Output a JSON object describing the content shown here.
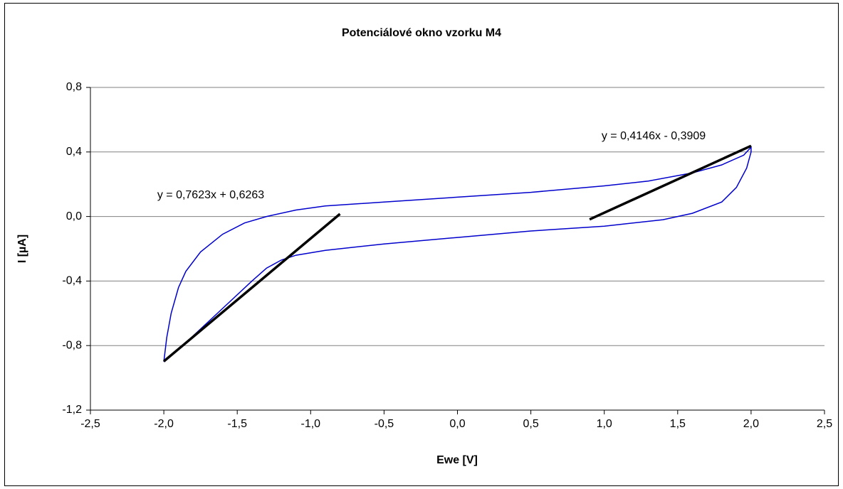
{
  "chart_data": {
    "type": "line",
    "title": "Potenciálové okno vzorku M4",
    "xlabel": "Ewe [V]",
    "ylabel": "I [µA]",
    "xlim": [
      -2.5,
      2.5
    ],
    "ylim": [
      -1.2,
      0.8
    ],
    "xticks": [
      {
        "value": -2.5,
        "label": "-2,5"
      },
      {
        "value": -2.0,
        "label": "-2,0"
      },
      {
        "value": -1.5,
        "label": "-1,5"
      },
      {
        "value": -1.0,
        "label": "-1,0"
      },
      {
        "value": -0.5,
        "label": "-0,5"
      },
      {
        "value": 0,
        "label": "0,0"
      },
      {
        "value": 0.5,
        "label": "0,5"
      },
      {
        "value": 1.0,
        "label": "1,0"
      },
      {
        "value": 1.5,
        "label": "1,5"
      },
      {
        "value": 2.0,
        "label": "2,0"
      },
      {
        "value": 2.5,
        "label": "2,5"
      }
    ],
    "yticks": [
      {
        "value": -1.2,
        "label": "-1,2"
      },
      {
        "value": -0.8,
        "label": "-0,8"
      },
      {
        "value": -0.4,
        "label": "-0,4"
      },
      {
        "value": 0,
        "label": "0,0"
      },
      {
        "value": 0.4,
        "label": "0,4"
      },
      {
        "value": 0.8,
        "label": "0,8"
      }
    ],
    "grid": true,
    "series": [
      {
        "color": "#0000cc",
        "x": [
          -2.0,
          -1.98,
          -1.95,
          -1.9,
          -1.85,
          -1.75,
          -1.6,
          -1.45,
          -1.3,
          -1.1,
          -0.9,
          -0.5,
          0,
          0.5,
          1.0,
          1.3,
          1.6,
          1.8,
          1.95,
          2.0,
          2.0,
          1.97,
          1.9,
          1.8,
          1.6,
          1.4,
          1.0,
          0.5,
          0,
          -0.5,
          -0.9,
          -1.1,
          -1.2,
          -1.3,
          -1.4,
          -1.6,
          -1.8,
          -2.0
        ],
        "values": [
          -0.9,
          -0.75,
          -0.6,
          -0.44,
          -0.34,
          -0.22,
          -0.11,
          -0.04,
          0.0,
          0.04,
          0.065,
          0.09,
          0.12,
          0.15,
          0.19,
          0.22,
          0.27,
          0.32,
          0.38,
          0.43,
          0.4,
          0.3,
          0.18,
          0.09,
          0.02,
          -0.02,
          -0.06,
          -0.09,
          -0.13,
          -0.17,
          -0.21,
          -0.24,
          -0.27,
          -0.32,
          -0.4,
          -0.57,
          -0.74,
          -0.9
        ]
      },
      {
        "color": "#000000",
        "x": [
          -2.0,
          -0.8
        ],
        "values": [
          -0.898,
          0.016
        ]
      },
      {
        "color": "#000000",
        "x": [
          0.9,
          2.0
        ],
        "values": [
          -0.018,
          0.438
        ]
      }
    ],
    "annotations": [
      "y = 0,7623x + 0,6263",
      "y = 0,4146x - 0,3909"
    ]
  }
}
